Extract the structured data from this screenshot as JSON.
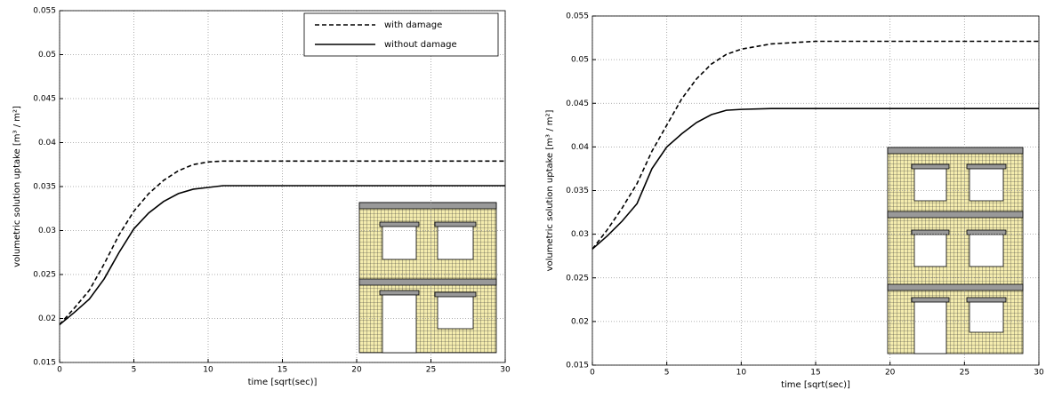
{
  "chart_data": [
    {
      "type": "line",
      "xlabel": "time [sqrt(sec)]",
      "ylabel": "volumetric solution uptake [m³ / m²]",
      "xlim": [
        0,
        30
      ],
      "ylim": [
        0.015,
        0.055
      ],
      "xticks": [
        0,
        5,
        10,
        15,
        20,
        25,
        30
      ],
      "yticks": [
        0.015,
        0.02,
        0.025,
        0.03,
        0.035,
        0.04,
        0.045,
        0.05,
        0.055
      ],
      "grid": true,
      "legend": "upper right",
      "x": [
        0,
        1,
        2,
        3,
        4,
        5,
        6,
        7,
        8,
        9,
        10,
        11,
        12,
        15,
        20,
        25,
        30
      ],
      "series": [
        {
          "name": "with damage",
          "color": "#000000",
          "dash": true,
          "values": [
            0.0193,
            0.0212,
            0.0232,
            0.0262,
            0.0295,
            0.0322,
            0.0342,
            0.0357,
            0.0368,
            0.0375,
            0.0378,
            0.0379,
            0.0379,
            0.0379,
            0.0379,
            0.0379,
            0.0379
          ]
        },
        {
          "name": "without damage",
          "color": "#000000",
          "dash": false,
          "values": [
            0.0193,
            0.0207,
            0.0222,
            0.0245,
            0.0275,
            0.0302,
            0.032,
            0.0333,
            0.0342,
            0.0347,
            0.0349,
            0.0351,
            0.0351,
            0.0351,
            0.0351,
            0.0351,
            0.0351
          ]
        }
      ]
    },
    {
      "type": "line",
      "xlabel": "time [sqrt(sec)]",
      "ylabel": "volumetric solution uptake [m³ / m²]",
      "xlim": [
        0,
        30
      ],
      "ylim": [
        0.015,
        0.055
      ],
      "xticks": [
        0,
        5,
        10,
        15,
        20,
        25,
        30
      ],
      "yticks": [
        0.015,
        0.02,
        0.025,
        0.03,
        0.035,
        0.04,
        0.045,
        0.05,
        0.055
      ],
      "grid": true,
      "x": [
        0,
        1,
        2,
        3,
        4,
        5,
        6,
        7,
        8,
        9,
        10,
        12,
        15,
        20,
        25,
        30
      ],
      "series": [
        {
          "color": "#000000",
          "dash": true,
          "values": [
            0.0283,
            0.0305,
            0.033,
            0.0358,
            0.0395,
            0.0425,
            0.0455,
            0.0478,
            0.0495,
            0.0506,
            0.0512,
            0.0518,
            0.0521,
            0.0521,
            0.0521,
            0.0521
          ]
        },
        {
          "color": "#000000",
          "dash": false,
          "values": [
            0.0283,
            0.0298,
            0.0315,
            0.0335,
            0.0375,
            0.04,
            0.0415,
            0.0428,
            0.0437,
            0.0442,
            0.0443,
            0.0444,
            0.0444,
            0.0444,
            0.0444,
            0.0444
          ]
        }
      ]
    }
  ]
}
